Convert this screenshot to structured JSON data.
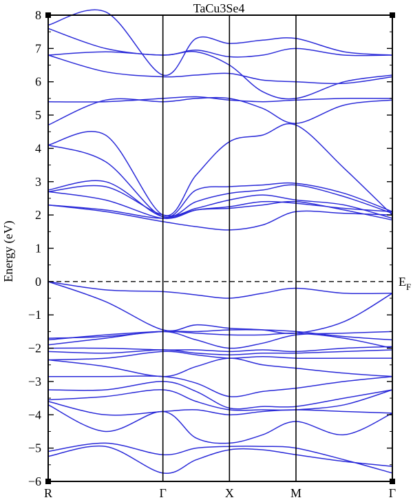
{
  "chart_data": {
    "type": "line",
    "title": "TaCu3Se4",
    "xlabel": "",
    "ylabel": "Energy (eV)",
    "ylim": [
      -6,
      8
    ],
    "yticks": [
      -6,
      -5,
      -4,
      -3,
      -2,
      -1,
      0,
      1,
      2,
      3,
      4,
      5,
      6,
      7,
      8
    ],
    "kpath": [
      {
        "label": "R",
        "x": 0
      },
      {
        "label": "Γ",
        "x": 1
      },
      {
        "label": "X",
        "x": 1.58
      },
      {
        "label": "M",
        "x": 2.16
      },
      {
        "label": "Γ",
        "x": 3.0
      }
    ],
    "fermi_label": "E",
    "fermi_subscript": "F",
    "fermi_level": 0,
    "line_color": "#2a2ad8",
    "x": [
      0,
      0.5,
      1,
      1.29,
      1.58,
      1.87,
      2.16,
      2.58,
      3.0
    ],
    "series": [
      {
        "values": [
          -5.25,
          -4.95,
          -5.75,
          -5.35,
          -5.05,
          -5.05,
          -5.2,
          -5.4,
          -5.55
        ]
      },
      {
        "values": [
          -5.1,
          -4.85,
          -5.2,
          -5.0,
          -4.95,
          -4.95,
          -5.0,
          -5.35,
          -5.75
        ]
      },
      {
        "values": [
          -3.7,
          -4.5,
          -3.9,
          -4.7,
          -4.85,
          -4.6,
          -4.2,
          -4.6,
          -3.95
        ]
      },
      {
        "values": [
          -3.6,
          -4.0,
          -3.9,
          -3.85,
          -4.0,
          -3.9,
          -3.85,
          -3.9,
          -3.95
        ]
      },
      {
        "values": [
          -3.55,
          -3.45,
          -3.25,
          -3.6,
          -3.85,
          -3.85,
          -3.85,
          -3.7,
          -3.25
        ]
      },
      {
        "values": [
          -3.25,
          -3.25,
          -3.0,
          -3.3,
          -3.8,
          -3.75,
          -3.75,
          -3.5,
          -3.25
        ]
      },
      {
        "values": [
          -2.85,
          -2.85,
          -2.85,
          -3.05,
          -3.45,
          -3.3,
          -3.2,
          -3.0,
          -2.85
        ]
      },
      {
        "values": [
          -2.35,
          -2.55,
          -2.85,
          -2.55,
          -2.3,
          -2.5,
          -2.6,
          -2.75,
          -2.85
        ]
      },
      {
        "values": [
          -2.35,
          -2.3,
          -2.1,
          -2.2,
          -2.3,
          -2.25,
          -2.3,
          -2.3,
          -2.3
        ]
      },
      {
        "values": [
          -2.1,
          -2.15,
          -2.05,
          -2.15,
          -2.2,
          -2.15,
          -2.15,
          -2.1,
          -2.05
        ]
      },
      {
        "values": [
          -2.0,
          -2.0,
          -2.05,
          -2.05,
          -2.1,
          -2.05,
          -2.1,
          -2.0,
          -1.95
        ]
      },
      {
        "values": [
          -1.9,
          -1.7,
          -1.5,
          -1.75,
          -2.0,
          -1.85,
          -1.6,
          -1.55,
          -1.5
        ]
      },
      {
        "values": [
          -1.75,
          -1.6,
          -1.5,
          -1.55,
          -1.6,
          -1.6,
          -1.55,
          -1.7,
          -2.0
        ]
      },
      {
        "values": [
          -1.7,
          -1.65,
          -1.5,
          -1.5,
          -1.45,
          -1.45,
          -1.5,
          -1.65,
          -1.75
        ]
      },
      {
        "values": [
          0.0,
          -0.6,
          -1.45,
          -1.3,
          -1.4,
          -1.45,
          -1.55,
          -1.2,
          -0.35
        ]
      },
      {
        "values": [
          0.0,
          -0.25,
          -0.3,
          -0.4,
          -0.5,
          -0.35,
          -0.2,
          -0.35,
          -0.35
        ]
      },
      {
        "values": [
          2.3,
          2.1,
          1.8,
          1.65,
          1.55,
          1.7,
          2.1,
          2.05,
          2.0
        ]
      },
      {
        "values": [
          2.3,
          2.15,
          1.9,
          2.15,
          2.2,
          2.3,
          2.4,
          2.15,
          1.85
        ]
      },
      {
        "values": [
          2.7,
          2.45,
          1.9,
          2.15,
          2.25,
          2.4,
          2.35,
          2.2,
          2.1
        ]
      },
      {
        "values": [
          2.7,
          2.85,
          2.0,
          2.2,
          2.45,
          2.6,
          2.45,
          2.3,
          1.9
        ]
      },
      {
        "values": [
          2.75,
          3.0,
          1.95,
          2.4,
          2.65,
          2.75,
          2.9,
          2.55,
          2.05
        ]
      },
      {
        "values": [
          4.1,
          3.6,
          1.95,
          2.75,
          2.85,
          2.9,
          2.95,
          2.65,
          2.1
        ]
      },
      {
        "values": [
          4.1,
          4.4,
          2.0,
          3.2,
          4.2,
          4.4,
          4.7,
          3.4,
          2.0
        ]
      },
      {
        "values": [
          4.7,
          5.45,
          5.4,
          5.5,
          5.5,
          5.2,
          4.75,
          5.3,
          5.45
        ]
      },
      {
        "values": [
          5.4,
          5.4,
          5.5,
          5.55,
          5.45,
          5.4,
          5.45,
          5.5,
          5.5
        ]
      },
      {
        "values": [
          6.8,
          6.3,
          6.15,
          6.2,
          6.25,
          6.05,
          6.0,
          5.95,
          6.15
        ]
      },
      {
        "values": [
          6.8,
          6.9,
          6.8,
          6.9,
          6.5,
          5.7,
          5.5,
          6.0,
          6.2
        ]
      },
      {
        "values": [
          7.6,
          7.0,
          6.8,
          6.95,
          6.75,
          6.8,
          7.0,
          6.8,
          6.8
        ]
      },
      {
        "values": [
          7.7,
          8.1,
          6.2,
          7.3,
          7.15,
          7.25,
          7.3,
          6.9,
          6.8
        ]
      }
    ]
  }
}
